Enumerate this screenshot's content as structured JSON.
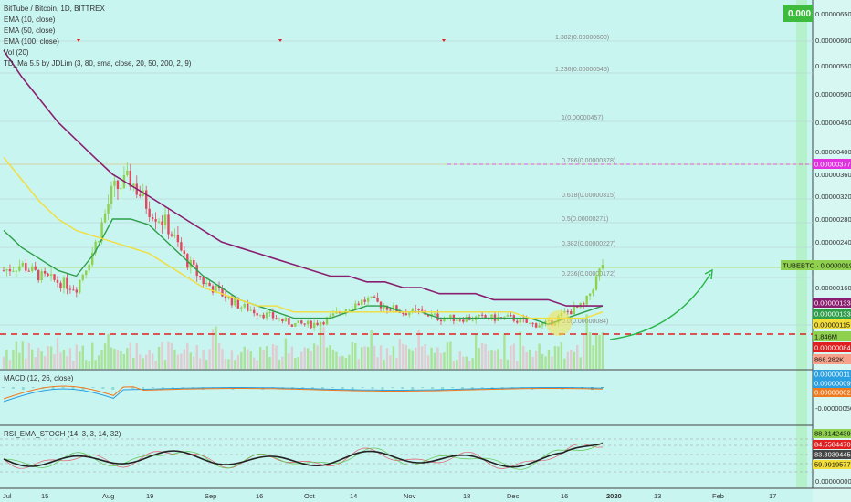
{
  "header": {
    "symbol_line": "BitTube / Bitcoin, 1D, BITTREX",
    "indicators": [
      "EMA (10, close)",
      "EMA (50, close)",
      "EMA (100, close)",
      "Vol (20)",
      "TD_Ma 5.5 by JDLim (3, 80, sma, close, 20, 50, 200, 2, 9)"
    ],
    "top_badge": "0.000"
  },
  "colors": {
    "background": "#c9f5f1",
    "up": "#8fd14f",
    "down": "#e0485e",
    "ema10": "#2e9e4a",
    "ema50": "#f2dd3a",
    "ema100": "#8a1f6f",
    "support_line": "#e02020",
    "fib_line": "#e05bd0",
    "arrow": "#29b54a"
  },
  "price_axis": {
    "ticks": [
      "0.00000650",
      "0.00000600",
      "0.00000550",
      "0.00000500",
      "0.00000450",
      "0.00000400",
      "0.00000360",
      "0.00000320",
      "0.00000280",
      "0.00000240",
      "0.00000160"
    ],
    "tags": [
      {
        "text": "0.00000377",
        "bg": "#e030e0",
        "fg": "#ffffff"
      },
      {
        "text": "TUBEBTC · 0.00000198",
        "bg": "#8fd14f",
        "fg": "#111111"
      },
      {
        "text": "0.00000133",
        "bg": "#8a1f6f",
        "fg": "#ffffff"
      },
      {
        "text": "0.00000133",
        "bg": "#2e9e4a",
        "fg": "#ffffff"
      },
      {
        "text": "0.00000115",
        "bg": "#f2dd3a",
        "fg": "#111111"
      },
      {
        "text": "1.846M",
        "bg": "#8fd14f",
        "fg": "#111111"
      },
      {
        "text": "0.00000084",
        "bg": "#e02020",
        "fg": "#ffffff"
      },
      {
        "text": "868.282K",
        "bg": "#f7a08a",
        "fg": "#111111"
      }
    ]
  },
  "fib_labels": [
    "1.382(0.00000600)",
    "1.236(0.00000545)",
    "1(0.00000457)",
    "0.786(0.00000378)",
    "0.618(0.00000315)",
    "0.5(0.00000271)",
    "0.382(0.00000227)",
    "0.236(0.00000172)",
    "0.0(0.00000084)"
  ],
  "time_axis": [
    "Jul",
    "15",
    "Aug",
    "19",
    "Sep",
    "16",
    "Oct",
    "14",
    "Nov",
    "18",
    "Dec",
    "16",
    "2020",
    "13",
    "Feb",
    "17"
  ],
  "macd": {
    "label": "MACD (12, 26, close)",
    "ticks": [
      "-0.00000050"
    ],
    "tags": [
      {
        "text": "0.00000011",
        "bg": "#2aa0e0",
        "fg": "#ffffff"
      },
      {
        "text": "0.00000009",
        "bg": "#2aa0e0",
        "fg": "#ffffff"
      },
      {
        "text": "0.00000002",
        "bg": "#f07a20",
        "fg": "#ffffff"
      }
    ]
  },
  "rsi": {
    "label": "RSI_EMA_STOCH (14, 3, 3, 14, 32)",
    "ticks": [
      "0.00000000"
    ],
    "tags": [
      {
        "text": "88.31424392",
        "bg": "#8fd14f",
        "fg": "#111111"
      },
      {
        "text": "84.55844701",
        "bg": "#e02020",
        "fg": "#ffffff"
      },
      {
        "text": "83.30394455",
        "bg": "#444444",
        "fg": "#ffffff"
      },
      {
        "text": "59.99195777",
        "bg": "#f2dd3a",
        "fg": "#111111"
      }
    ]
  },
  "chart_data": {
    "type": "line",
    "title": "BitTube / Bitcoin, 1D, BITTREX",
    "symbol": "TUBEBTC",
    "last_price": 1.98e-06,
    "support": 8.4e-07,
    "fib_target": 3.77e-06,
    "x_range": [
      "Jul",
      "Feb 17"
    ],
    "ylim": [
      6e-07,
      6.6e-06
    ],
    "close": [
      1.9e-06,
      2e-06,
      1.8e-06,
      1.7e-06,
      1.6e-06,
      2.3e-06,
      3.3e-06,
      3.5e-06,
      3e-06,
      2.7e-06,
      2.1e-06,
      1.7e-06,
      1.5e-06,
      1.3e-06,
      1.2e-06,
      1.1e-06,
      1e-06,
      1e-06,
      1.1e-06,
      1.3e-06,
      1.4e-06,
      1.3e-06,
      1.2e-06,
      1.2e-06,
      1.1e-06,
      1.1e-06,
      1.1e-06,
      1.1e-06,
      1.1e-06,
      1e-06,
      1e-06,
      1.2e-06,
      1.3e-06,
      2e-06
    ],
    "series": [
      {
        "name": "EMA (10, close)",
        "values": [
          2.6e-06,
          2.3e-06,
          2.1e-06,
          1.9e-06,
          1.8e-06,
          2.2e-06,
          2.8e-06,
          2.8e-06,
          2.7e-06,
          2.4e-06,
          2.1e-06,
          1.8e-06,
          1.6e-06,
          1.4e-06,
          1.3e-06,
          1.2e-06,
          1.1e-06,
          1.1e-06,
          1.1e-06,
          1.2e-06,
          1.3e-06,
          1.3e-06,
          1.2e-06,
          1.2e-06,
          1.1e-06,
          1.1e-06,
          1.1e-06,
          1.1e-06,
          1.1e-06,
          1.1e-06,
          1e-06,
          1.1e-06,
          1.2e-06,
          1.3e-06
        ]
      },
      {
        "name": "EMA (50, close)",
        "values": [
          3.9e-06,
          3.5e-06,
          3.1e-06,
          2.8e-06,
          2.6e-06,
          2.5e-06,
          2.4e-06,
          2.3e-06,
          2.2e-06,
          2e-06,
          1.8e-06,
          1.6e-06,
          1.5e-06,
          1.4e-06,
          1.3e-06,
          1.3e-06,
          1.2e-06,
          1.2e-06,
          1.2e-06,
          1.2e-06,
          1.2e-06,
          1.2e-06,
          1.2e-06,
          1.2e-06,
          1.2e-06,
          1.2e-06,
          1.2e-06,
          1.2e-06,
          1.2e-06,
          1.1e-06,
          1.1e-06,
          1.1e-06,
          1.1e-06,
          1.2e-06
        ]
      },
      {
        "name": "EMA (100, close)",
        "values": [
          5.8e-06,
          5.3e-06,
          4.9e-06,
          4.5e-06,
          4.2e-06,
          3.9e-06,
          3.6e-06,
          3.4e-06,
          3.2e-06,
          3e-06,
          2.8e-06,
          2.6e-06,
          2.4e-06,
          2.3e-06,
          2.2e-06,
          2.1e-06,
          2e-06,
          1.9e-06,
          1.8e-06,
          1.8e-06,
          1.7e-06,
          1.7e-06,
          1.6e-06,
          1.6e-06,
          1.5e-06,
          1.5e-06,
          1.5e-06,
          1.4e-06,
          1.4e-06,
          1.4e-06,
          1.4e-06,
          1.3e-06,
          1.3e-06,
          1.3e-06
        ]
      }
    ]
  }
}
